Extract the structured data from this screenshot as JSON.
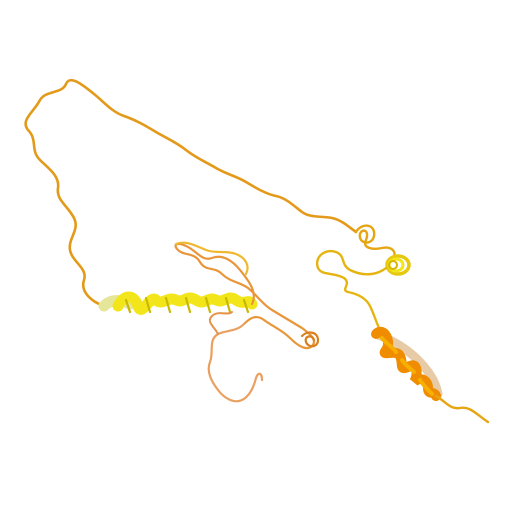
{
  "image": {
    "background": "#ffffff",
    "subject": "protein-ribbon",
    "colors": {
      "coil_orange": "#e8961e",
      "coil_gold": "#e6b40f",
      "coil_light_orange": "#eaa060",
      "helix_yellow": "#f2e61a",
      "helix_pale": "#e6e69a",
      "helix_orange": "#f08c00",
      "helix_gold": "#f0b400",
      "shadow": "#b07000"
    }
  }
}
